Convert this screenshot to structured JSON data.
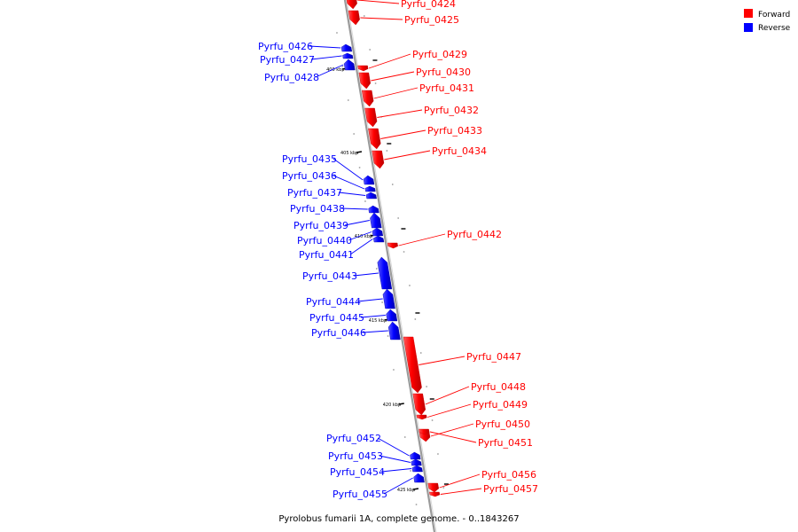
{
  "title": "Pyrolobus fumarii 1A, complete genome. - 0..1843267",
  "colors": {
    "forward": "#ff0000",
    "reverse": "#0000ff",
    "backbone": "#999999"
  },
  "legend": {
    "forward_label": "Forward",
    "reverse_label": "Reverse"
  },
  "ruler_labels": [
    "400 kbp",
    "405 kbp",
    "410 kbp",
    "415 kbp",
    "420 kbp",
    "425 kbp"
  ],
  "genes": [
    {
      "name": "Pyrfu_0424",
      "strand": "forward"
    },
    {
      "name": "Pyrfu_0425",
      "strand": "forward"
    },
    {
      "name": "Pyrfu_0426",
      "strand": "reverse"
    },
    {
      "name": "Pyrfu_0427",
      "strand": "reverse"
    },
    {
      "name": "Pyrfu_0428",
      "strand": "reverse"
    },
    {
      "name": "Pyrfu_0429",
      "strand": "forward"
    },
    {
      "name": "Pyrfu_0430",
      "strand": "forward"
    },
    {
      "name": "Pyrfu_0431",
      "strand": "forward"
    },
    {
      "name": "Pyrfu_0432",
      "strand": "forward"
    },
    {
      "name": "Pyrfu_0433",
      "strand": "forward"
    },
    {
      "name": "Pyrfu_0434",
      "strand": "forward"
    },
    {
      "name": "Pyrfu_0435",
      "strand": "reverse"
    },
    {
      "name": "Pyrfu_0436",
      "strand": "reverse"
    },
    {
      "name": "Pyrfu_0437",
      "strand": "reverse"
    },
    {
      "name": "Pyrfu_0438",
      "strand": "reverse"
    },
    {
      "name": "Pyrfu_0439",
      "strand": "reverse"
    },
    {
      "name": "Pyrfu_0440",
      "strand": "reverse"
    },
    {
      "name": "Pyrfu_0441",
      "strand": "reverse"
    },
    {
      "name": "Pyrfu_0442",
      "strand": "forward"
    },
    {
      "name": "Pyrfu_0443",
      "strand": "reverse"
    },
    {
      "name": "Pyrfu_0444",
      "strand": "reverse"
    },
    {
      "name": "Pyrfu_0445",
      "strand": "reverse"
    },
    {
      "name": "Pyrfu_0446",
      "strand": "reverse"
    },
    {
      "name": "Pyrfu_0447",
      "strand": "forward"
    },
    {
      "name": "Pyrfu_0448",
      "strand": "forward"
    },
    {
      "name": "Pyrfu_0449",
      "strand": "forward"
    },
    {
      "name": "Pyrfu_0450",
      "strand": "forward"
    },
    {
      "name": "Pyrfu_0451",
      "strand": "forward"
    },
    {
      "name": "Pyrfu_0452",
      "strand": "reverse"
    },
    {
      "name": "Pyrfu_0453",
      "strand": "reverse"
    },
    {
      "name": "Pyrfu_0454",
      "strand": "reverse"
    },
    {
      "name": "Pyrfu_0455",
      "strand": "reverse"
    },
    {
      "name": "Pyrfu_0456",
      "strand": "forward"
    },
    {
      "name": "Pyrfu_0457",
      "strand": "forward"
    }
  ]
}
